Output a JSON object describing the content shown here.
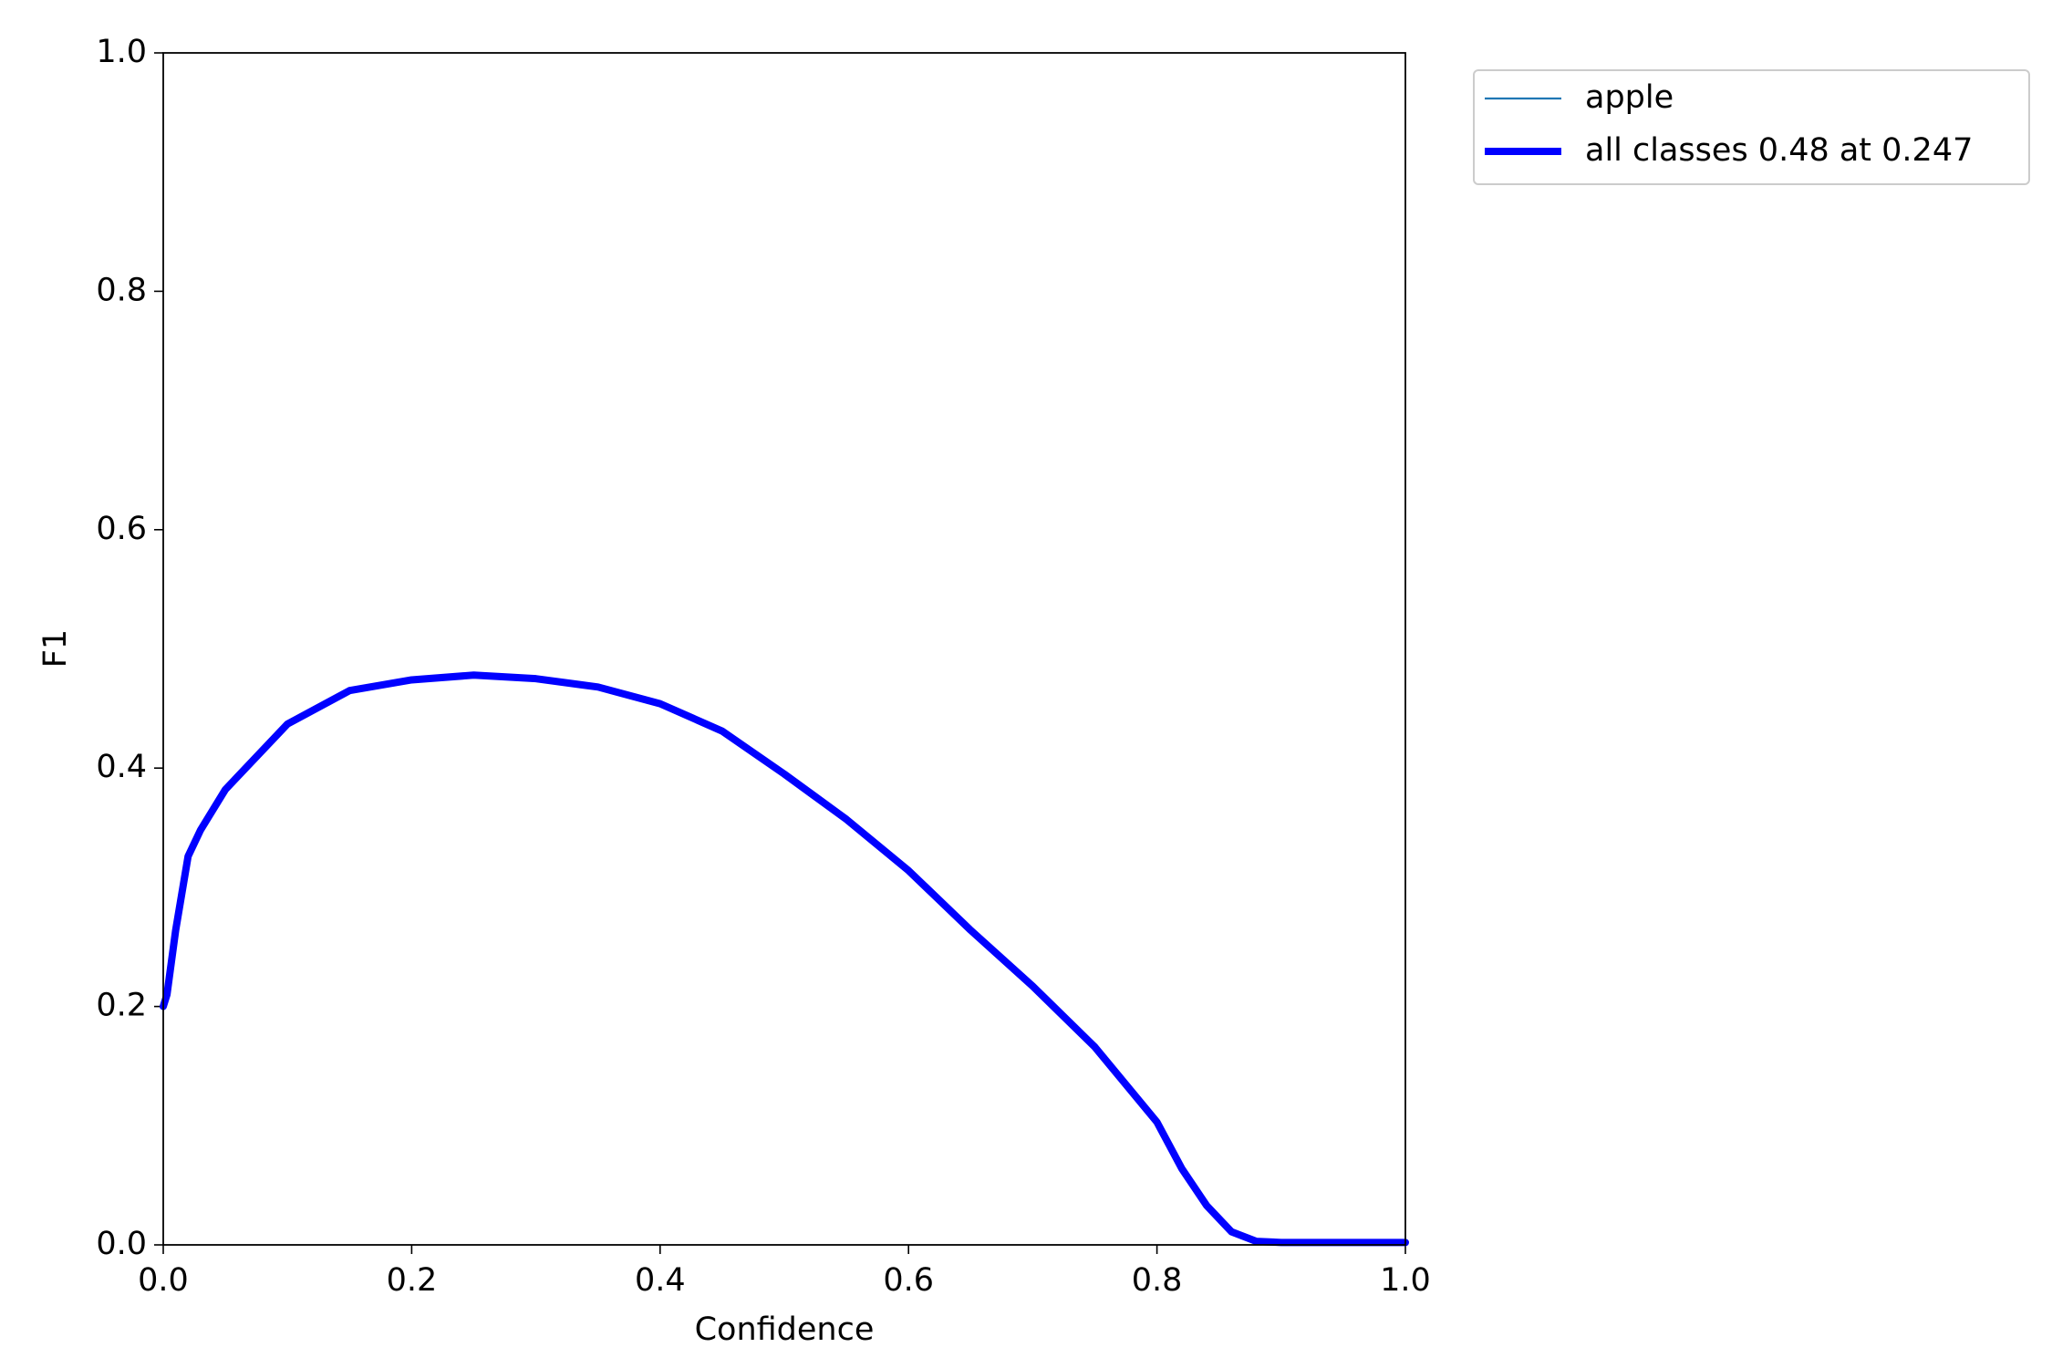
{
  "chart_data": {
    "type": "line",
    "x_label": "Confidence",
    "y_label": "F1",
    "x": [
      0.0,
      0.003,
      0.01,
      0.02,
      0.03,
      0.05,
      0.1,
      0.15,
      0.2,
      0.25,
      0.3,
      0.35,
      0.4,
      0.45,
      0.5,
      0.55,
      0.6,
      0.65,
      0.7,
      0.75,
      0.8,
      0.82,
      0.84,
      0.86,
      0.88,
      0.9,
      1.0
    ],
    "series": [
      {
        "name": "apple",
        "color": "#1f77b4",
        "width": 2.2,
        "values": [
          0.2,
          0.21,
          0.264,
          0.326,
          0.348,
          0.382,
          0.437,
          0.465,
          0.474,
          0.478,
          0.475,
          0.468,
          0.454,
          0.431,
          0.395,
          0.357,
          0.314,
          0.264,
          0.217,
          0.166,
          0.103,
          0.064,
          0.033,
          0.011,
          0.003,
          0.002,
          0.002
        ]
      },
      {
        "name": "all classes 0.48 at 0.247",
        "color": "#0000ff",
        "width": 8,
        "values": [
          0.2,
          0.21,
          0.264,
          0.326,
          0.348,
          0.382,
          0.437,
          0.465,
          0.474,
          0.478,
          0.475,
          0.468,
          0.454,
          0.431,
          0.395,
          0.357,
          0.314,
          0.264,
          0.217,
          0.166,
          0.103,
          0.064,
          0.033,
          0.011,
          0.003,
          0.002,
          0.002
        ]
      }
    ],
    "xlim": [
      0,
      1
    ],
    "ylim": [
      0,
      1
    ],
    "xticks": [
      {
        "value": 0,
        "label": "0.0"
      },
      0.2,
      0.4,
      0.6,
      0.8,
      {
        "value": 1,
        "label": "1.0"
      }
    ],
    "yticks": [
      {
        "value": 0,
        "label": "0.0"
      },
      0.2,
      0.4,
      0.6,
      0.8,
      {
        "value": 1,
        "label": "1.0"
      }
    ],
    "grid": false,
    "legend": "outside upper right"
  }
}
